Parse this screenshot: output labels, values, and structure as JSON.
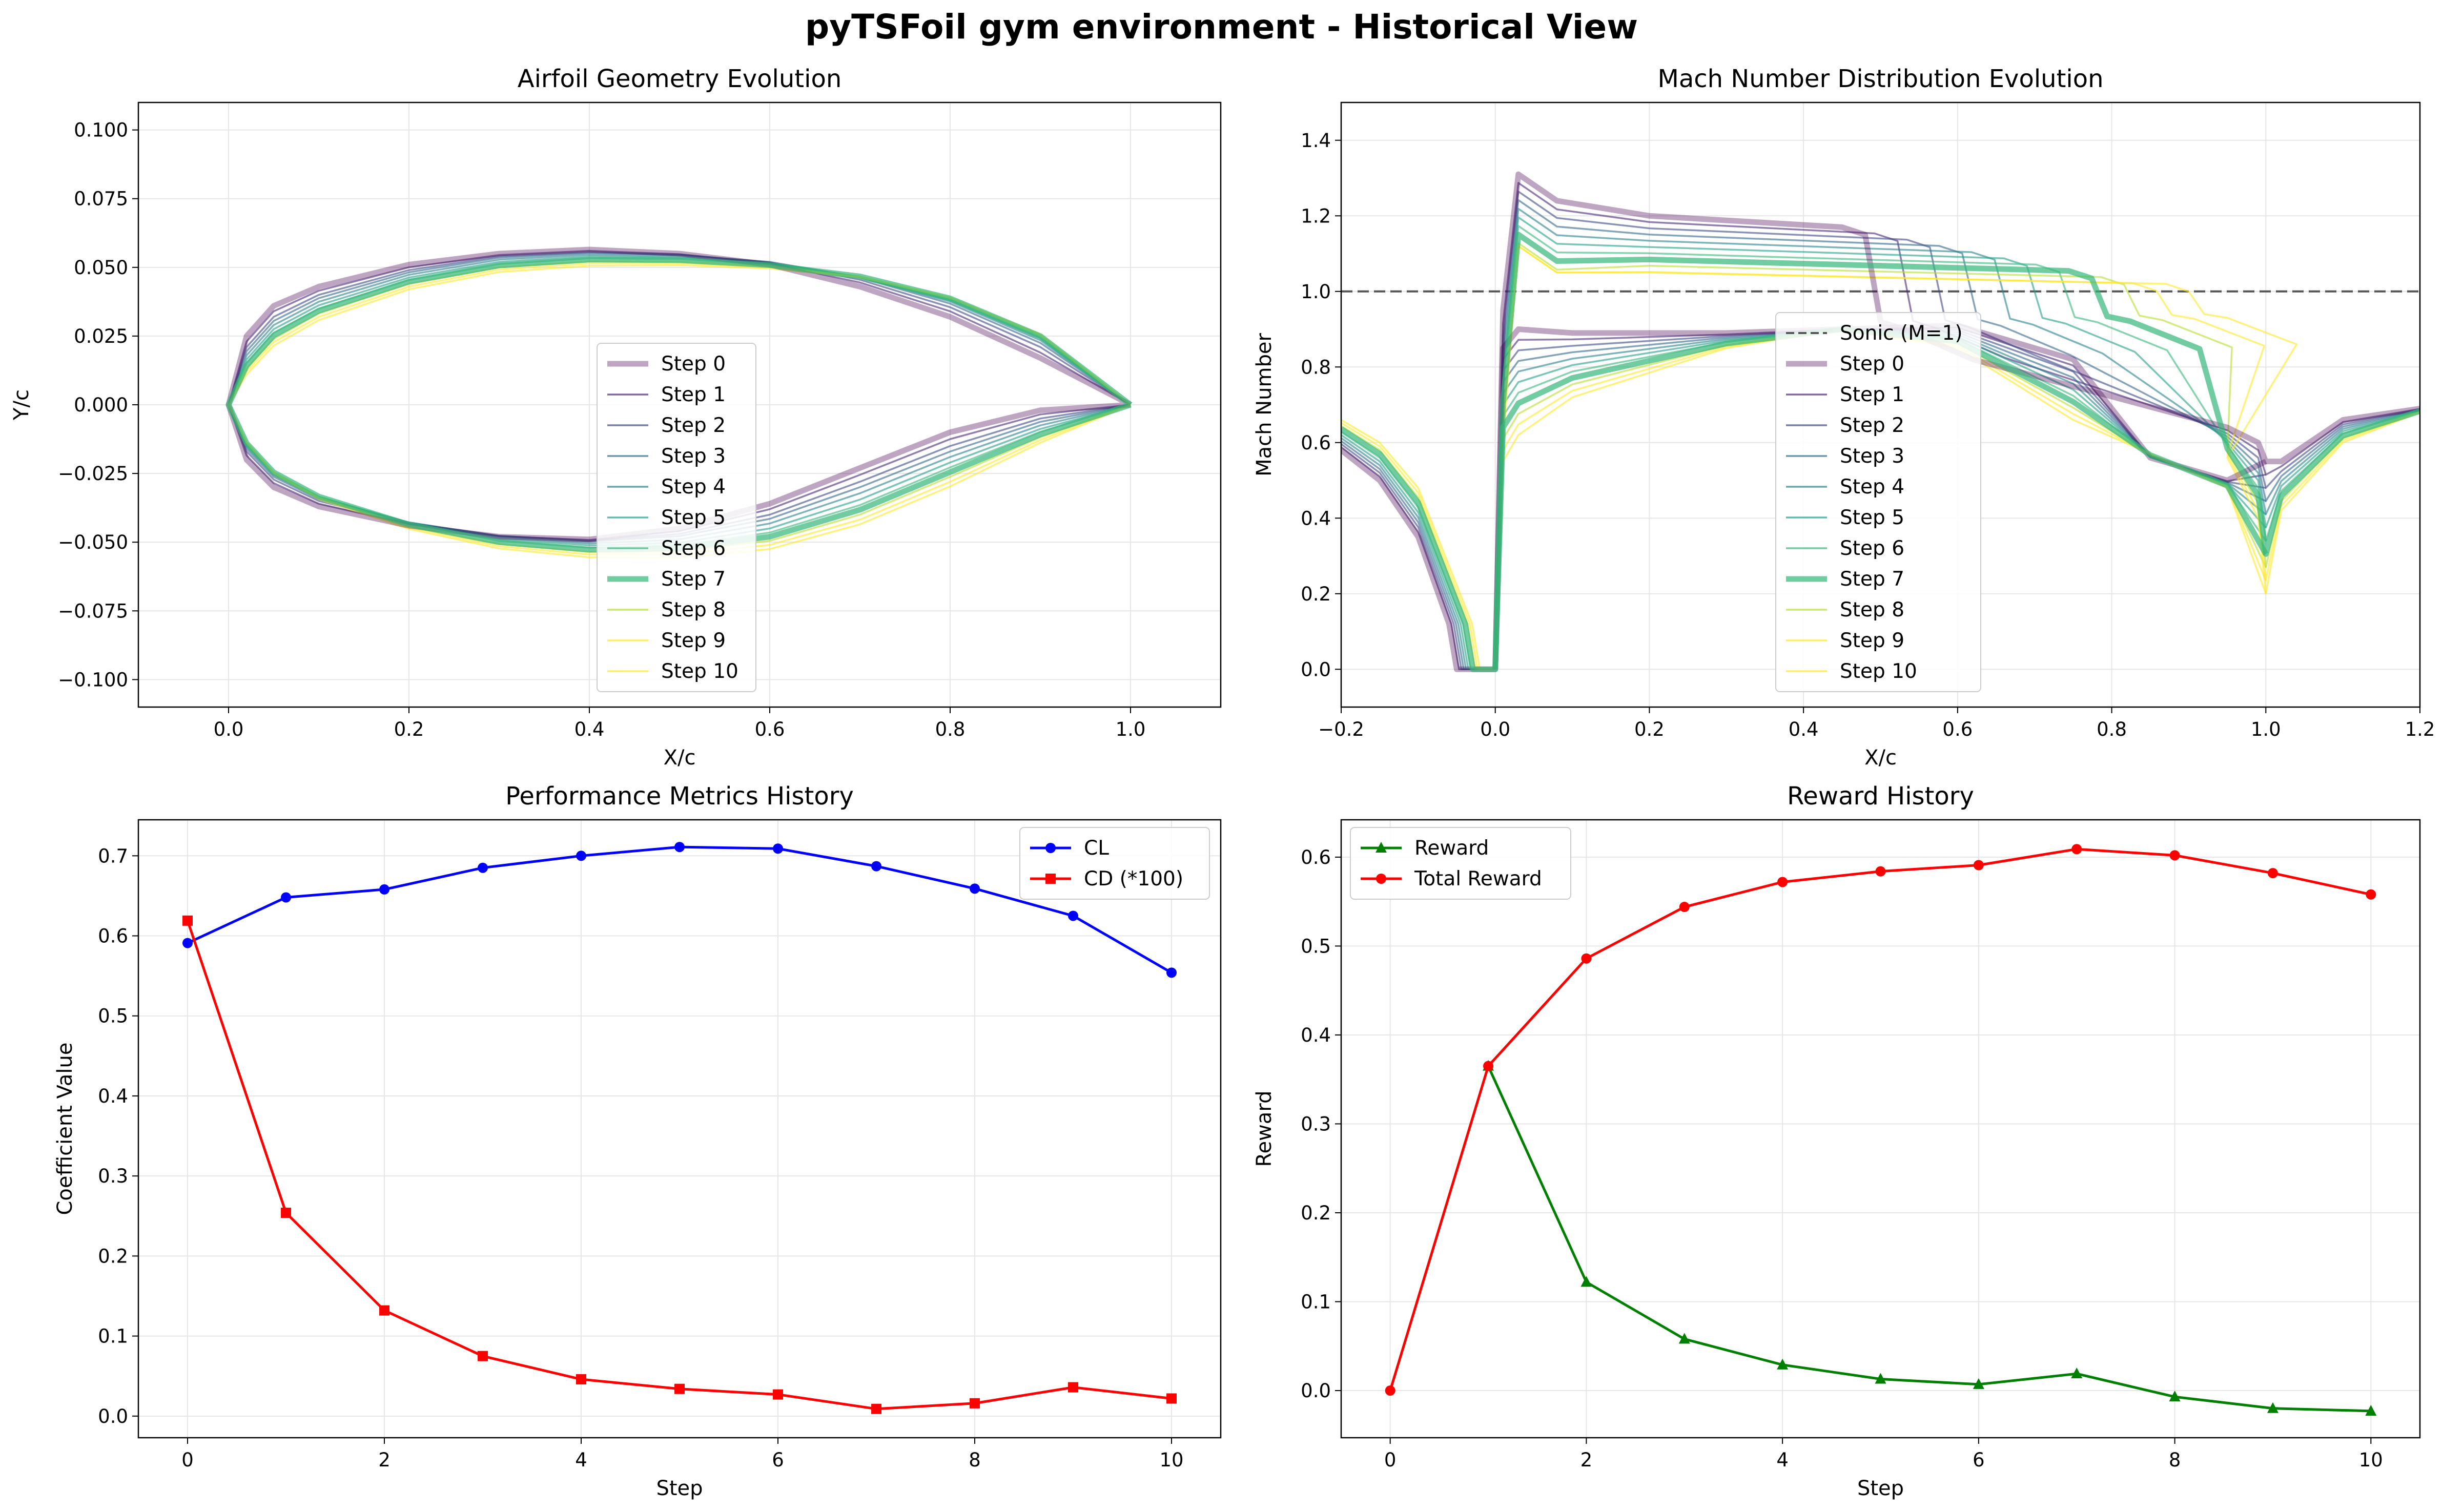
{
  "title": "pyTSFoil gym environment - Historical View",
  "colors": {
    "steps": [
      "#440154",
      "#482878",
      "#3e4989",
      "#31688e",
      "#26828e",
      "#1f9e89",
      "#35b779",
      "#6ece58",
      "#b5de2b",
      "#fde725"
    ],
    "cl": "#0000ff",
    "cd": "#ff0000",
    "reward": "#008000",
    "total_reward": "#ff0000",
    "sonic": "#555555",
    "grid": "#e6e6e6"
  },
  "chart_data": [
    {
      "id": "geometry",
      "type": "line",
      "title": "Airfoil Geometry Evolution",
      "xlabel": "X/c",
      "ylabel": "Y/c",
      "xlim": [
        -0.1,
        1.1
      ],
      "ylim": [
        -0.11,
        0.11
      ],
      "xticks": [
        "0.0",
        "0.2",
        "0.4",
        "0.6",
        "0.8",
        "1.0"
      ],
      "yticks": [
        "−0.100",
        "−0.075",
        "−0.050",
        "−0.025",
        "0.000",
        "0.025",
        "0.050",
        "0.075",
        "0.100"
      ],
      "grid": true,
      "legend_position": "center",
      "legend": [
        "Step 0",
        "Step 1",
        "Step 2",
        "Step 3",
        "Step 4",
        "Step 5",
        "Step 6",
        "Step 7",
        "Step 8",
        "Step 9",
        "Step 10"
      ],
      "x": [
        0,
        0.02,
        0.05,
        0.1,
        0.2,
        0.3,
        0.4,
        0.5,
        0.6,
        0.7,
        0.8,
        0.9,
        1.0
      ],
      "series": [
        {
          "name": "Step 0",
          "upper": [
            0,
            0.025,
            0.036,
            0.043,
            0.051,
            0.055,
            0.0565,
            0.055,
            0.051,
            0.043,
            0.032,
            0.017,
            0
          ],
          "lower": [
            0,
            -0.02,
            -0.03,
            -0.037,
            -0.044,
            -0.048,
            -0.049,
            -0.045,
            -0.036,
            -0.023,
            -0.01,
            -0.002,
            0
          ]
        },
        {
          "name": "Step 1",
          "upper": [
            0,
            0.023,
            0.034,
            0.0415,
            0.05,
            0.0545,
            0.056,
            0.0548,
            0.0515,
            0.0445,
            0.034,
            0.019,
            0
          ],
          "lower": [
            0,
            -0.0185,
            -0.0285,
            -0.036,
            -0.0435,
            -0.0478,
            -0.0492,
            -0.046,
            -0.038,
            -0.0255,
            -0.0125,
            -0.0035,
            0
          ]
        },
        {
          "name": "Step 2",
          "upper": [
            0,
            0.021,
            0.032,
            0.04,
            0.049,
            0.054,
            0.0555,
            0.0546,
            0.0518,
            0.0455,
            0.0355,
            0.021,
            0
          ],
          "lower": [
            0,
            -0.017,
            -0.0272,
            -0.035,
            -0.043,
            -0.0477,
            -0.0495,
            -0.047,
            -0.04,
            -0.028,
            -0.015,
            -0.005,
            0
          ]
        },
        {
          "name": "Step 3",
          "upper": [
            0,
            0.0195,
            0.0305,
            0.0388,
            0.0482,
            0.0535,
            0.0552,
            0.0545,
            0.052,
            0.0463,
            0.0368,
            0.0225,
            0
          ],
          "lower": [
            0,
            -0.016,
            -0.0262,
            -0.0343,
            -0.0428,
            -0.0478,
            -0.0498,
            -0.0478,
            -0.0415,
            -0.03,
            -0.017,
            -0.0062,
            0
          ]
        },
        {
          "name": "Step 4",
          "upper": [
            0,
            0.018,
            0.029,
            0.0375,
            0.0473,
            0.0528,
            0.0546,
            0.054,
            0.0517,
            0.0465,
            0.0376,
            0.0235,
            0
          ],
          "lower": [
            0,
            -0.0152,
            -0.0255,
            -0.0338,
            -0.0428,
            -0.0482,
            -0.0505,
            -0.049,
            -0.0432,
            -0.0322,
            -0.019,
            -0.0075,
            0
          ]
        },
        {
          "name": "Step 5",
          "upper": [
            0,
            0.0165,
            0.0275,
            0.0362,
            0.0463,
            0.052,
            0.054,
            0.0535,
            0.0513,
            0.0466,
            0.0381,
            0.0242,
            0
          ],
          "lower": [
            0,
            -0.0146,
            -0.025,
            -0.0335,
            -0.043,
            -0.0488,
            -0.0512,
            -0.0502,
            -0.045,
            -0.0345,
            -0.021,
            -0.0088,
            0
          ]
        },
        {
          "name": "Step 6",
          "upper": [
            0,
            0.0152,
            0.0262,
            0.035,
            0.0454,
            0.0512,
            0.0533,
            0.053,
            0.051,
            0.0466,
            0.0384,
            0.0246,
            0
          ],
          "lower": [
            0,
            -0.0142,
            -0.0247,
            -0.0334,
            -0.0433,
            -0.0495,
            -0.052,
            -0.0512,
            -0.0465,
            -0.0365,
            -0.0228,
            -0.0098,
            0
          ]
        },
        {
          "name": "Step 7",
          "upper": [
            0,
            0.0142,
            0.0252,
            0.0342,
            0.0448,
            0.0507,
            0.0528,
            0.0526,
            0.0508,
            0.0467,
            0.0387,
            0.025,
            0
          ],
          "lower": [
            0,
            -0.014,
            -0.0246,
            -0.0334,
            -0.0436,
            -0.05,
            -0.0527,
            -0.0522,
            -0.048,
            -0.0382,
            -0.0245,
            -0.0108,
            0
          ]
        },
        {
          "name": "Step 8",
          "upper": [
            0,
            0.0132,
            0.024,
            0.0332,
            0.044,
            0.05,
            0.0522,
            0.0521,
            0.0505,
            0.0467,
            0.0389,
            0.0253,
            0
          ],
          "lower": [
            0,
            -0.0138,
            -0.0246,
            -0.0336,
            -0.0441,
            -0.0507,
            -0.0536,
            -0.0533,
            -0.0495,
            -0.04,
            -0.0262,
            -0.0118,
            0
          ]
        },
        {
          "name": "Step 9",
          "upper": [
            0,
            0.0122,
            0.0228,
            0.032,
            0.043,
            0.0492,
            0.0514,
            0.0515,
            0.0501,
            0.0466,
            0.039,
            0.0255,
            0
          ],
          "lower": [
            0,
            -0.0137,
            -0.0247,
            -0.0339,
            -0.0446,
            -0.0515,
            -0.0545,
            -0.0545,
            -0.051,
            -0.0418,
            -0.028,
            -0.0128,
            0
          ]
        },
        {
          "name": "Step 10",
          "upper": [
            0,
            0.011,
            0.0215,
            0.0308,
            0.042,
            0.0483,
            0.0506,
            0.0508,
            0.0496,
            0.0464,
            0.039,
            0.0256,
            0
          ],
          "lower": [
            0,
            -0.0136,
            -0.0249,
            -0.0343,
            -0.0452,
            -0.0523,
            -0.0555,
            -0.0557,
            -0.0525,
            -0.0435,
            -0.0297,
            -0.0138,
            0
          ]
        }
      ]
    },
    {
      "id": "mach",
      "type": "line",
      "title": "Mach Number Distribution Evolution",
      "xlabel": "X/c",
      "ylabel": "Mach Number",
      "xlim": [
        -0.2,
        1.2
      ],
      "ylim": [
        -0.1,
        1.5
      ],
      "xticks": [
        "−0.2",
        "0.0",
        "0.2",
        "0.4",
        "0.6",
        "0.8",
        "1.0",
        "1.2"
      ],
      "yticks": [
        "0.0",
        "0.2",
        "0.4",
        "0.6",
        "0.8",
        "1.0",
        "1.2",
        "1.4"
      ],
      "grid": true,
      "legend_position": "center",
      "legend": [
        "Sonic (M=1)",
        "Step 0",
        "Step 1",
        "Step 2",
        "Step 3",
        "Step 4",
        "Step 5",
        "Step 6",
        "Step 7",
        "Step 8",
        "Step 9",
        "Step 10"
      ],
      "sonic_line": 1.0
    },
    {
      "id": "performance",
      "type": "line",
      "title": "Performance Metrics History",
      "xlabel": "Step",
      "ylabel": "Coefficient Value",
      "xlim": [
        -0.5,
        10.5
      ],
      "ylim": [
        -0.027,
        0.745
      ],
      "xticks": [
        "0",
        "2",
        "4",
        "6",
        "8",
        "10"
      ],
      "yticks": [
        "0.0",
        "0.1",
        "0.2",
        "0.3",
        "0.4",
        "0.5",
        "0.6",
        "0.7"
      ],
      "grid": true,
      "legend_position": "upper right",
      "x": [
        0,
        1,
        2,
        3,
        4,
        5,
        6,
        7,
        8,
        9,
        10
      ],
      "series": [
        {
          "name": "CL",
          "values": [
            0.591,
            0.648,
            0.658,
            0.685,
            0.7,
            0.711,
            0.709,
            0.687,
            0.659,
            0.625,
            0.554
          ]
        },
        {
          "name": "CD (*100)",
          "values": [
            0.619,
            0.254,
            0.132,
            0.075,
            0.046,
            0.034,
            0.027,
            0.009,
            0.016,
            0.036,
            0.022
          ]
        }
      ]
    },
    {
      "id": "reward",
      "type": "line",
      "title": "Reward History",
      "xlabel": "Step",
      "ylabel": "Reward",
      "xlim": [
        -0.5,
        10.5
      ],
      "ylim": [
        -0.053,
        0.642
      ],
      "xticks": [
        "0",
        "2",
        "4",
        "6",
        "8",
        "10"
      ],
      "yticks": [
        "0.0",
        "0.1",
        "0.2",
        "0.3",
        "0.4",
        "0.5",
        "0.6"
      ],
      "grid": true,
      "legend_position": "upper left",
      "x": [
        0,
        1,
        2,
        3,
        4,
        5,
        6,
        7,
        8,
        9,
        10
      ],
      "series": [
        {
          "name": "Reward",
          "values": [
            null,
            0.365,
            0.122,
            0.058,
            0.029,
            0.013,
            0.007,
            0.019,
            -0.007,
            -0.02,
            -0.023
          ]
        },
        {
          "name": "Total Reward",
          "values": [
            0.0,
            0.365,
            0.486,
            0.544,
            0.572,
            0.584,
            0.591,
            0.609,
            0.602,
            0.582,
            0.558
          ]
        }
      ]
    }
  ]
}
